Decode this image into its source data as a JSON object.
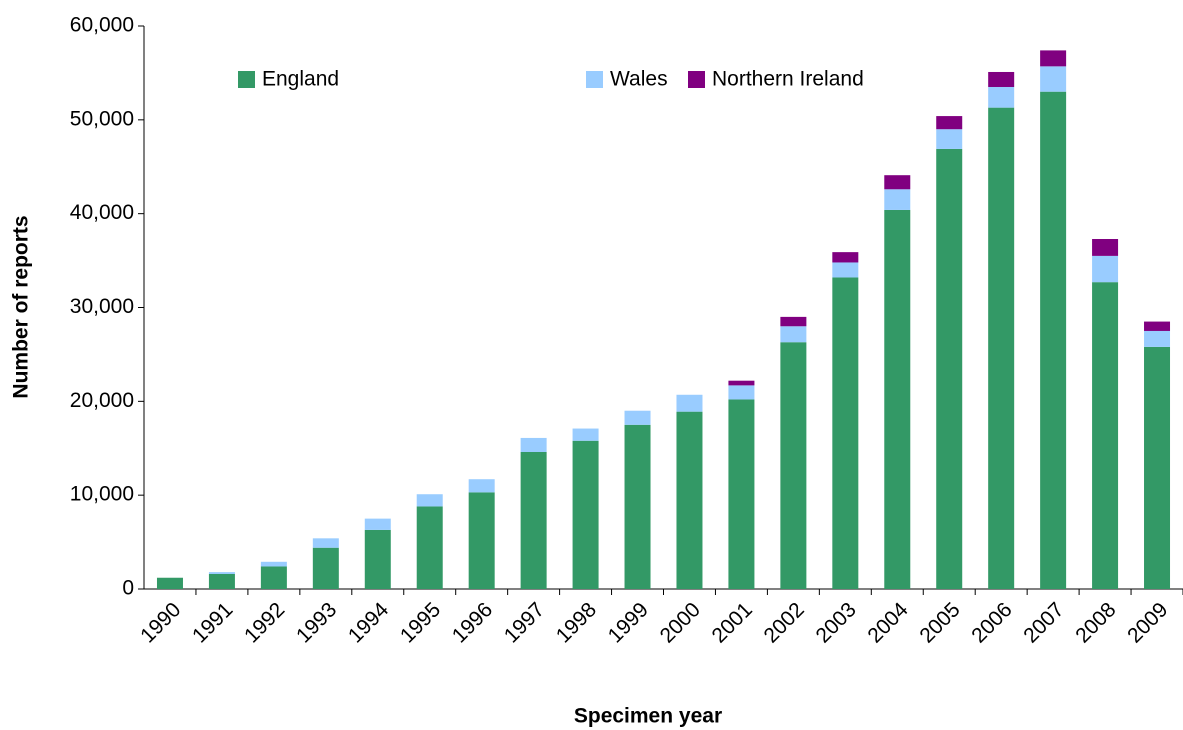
{
  "chart_data": {
    "type": "stacked-bar",
    "x_label": "Specimen year",
    "y_label": "Number of reports",
    "categories": [
      "1990",
      "1991",
      "1992",
      "1993",
      "1994",
      "1995",
      "1996",
      "1997",
      "1998",
      "1999",
      "2000",
      "2001",
      "2002",
      "2003",
      "2004",
      "2005",
      "2006",
      "2007",
      "2008",
      "2009"
    ],
    "series": [
      {
        "name": "England",
        "color": "#339966",
        "values": [
          1200,
          1600,
          2400,
          4400,
          6300,
          8800,
          10300,
          14600,
          15800,
          17500,
          18900,
          20200,
          26300,
          33200,
          40400,
          46900,
          51300,
          53000,
          32700,
          25800
        ]
      },
      {
        "name": "Wales",
        "color": "#99ccff",
        "values": [
          0,
          200,
          500,
          1000,
          1200,
          1300,
          1400,
          1500,
          1300,
          1500,
          1800,
          1500,
          1700,
          1600,
          2200,
          2100,
          2200,
          2700,
          2800,
          1700
        ]
      },
      {
        "name": "Northern Ireland",
        "color": "#800080",
        "values": [
          0,
          0,
          0,
          0,
          0,
          0,
          0,
          0,
          0,
          0,
          0,
          500,
          1000,
          1100,
          1500,
          1400,
          1600,
          1700,
          1800,
          1000
        ]
      }
    ],
    "ylim": [
      0,
      60000
    ],
    "yticks": [
      0,
      {
        "value": 10000,
        "label": "10,000"
      },
      {
        "value": 20000,
        "label": "20,000"
      },
      {
        "value": 30000,
        "label": "30,000"
      },
      {
        "value": 40000,
        "label": "40,000"
      },
      {
        "value": 50000,
        "label": "50,000"
      },
      {
        "value": 60000,
        "label": "60,000"
      }
    ],
    "grid": false,
    "legend": "top"
  }
}
